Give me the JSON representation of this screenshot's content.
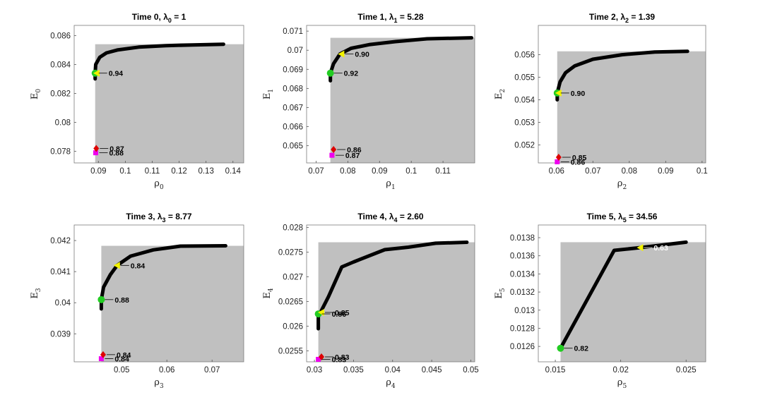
{
  "chart_data": [
    {
      "type": "line",
      "title": "Time 0,  λ",
      "title_sub": "0",
      "title_value": " = 1",
      "xlabel": "ρ",
      "xlabel_sub": "0",
      "ylabel": "E",
      "ylabel_sub": "0",
      "xlim": [
        0.081,
        0.144
      ],
      "ylim": [
        0.0772,
        0.0867
      ],
      "xticks": [
        0.09,
        0.1,
        0.11,
        0.12,
        0.13,
        0.14
      ],
      "xtick_labels": [
        "0.09",
        "0.1",
        "0.11",
        "0.12",
        "0.13",
        "0.14"
      ],
      "yticks": [
        0.078,
        0.08,
        0.082,
        0.084,
        0.086
      ],
      "ytick_labels": [
        "0.078",
        "0.08",
        "0.082",
        "0.084",
        "0.086"
      ],
      "frontier": [
        [
          0.0888,
          0.083
        ],
        [
          0.0888,
          0.0834
        ],
        [
          0.089,
          0.084
        ],
        [
          0.0905,
          0.0845
        ],
        [
          0.093,
          0.0848
        ],
        [
          0.097,
          0.085
        ],
        [
          0.105,
          0.0852
        ],
        [
          0.115,
          0.0853
        ],
        [
          0.125,
          0.08535
        ],
        [
          0.1365,
          0.0854
        ]
      ],
      "region_top": 0.0854,
      "markers": [
        {
          "x": 0.0888,
          "y": 0.0834,
          "color": "#22cc22",
          "shape": "circle",
          "label": "0.94"
        },
        {
          "x": 0.0894,
          "y": 0.0834,
          "color": "#f2f200",
          "shape": "triangle",
          "label": ""
        },
        {
          "x": 0.0892,
          "y": 0.0782,
          "color": "#dd0000",
          "shape": "diamond",
          "label": "0.87"
        },
        {
          "x": 0.089,
          "y": 0.0779,
          "color": "#ee00ee",
          "shape": "square",
          "label": "0.88"
        }
      ]
    },
    {
      "type": "line",
      "title": "Time 1,  λ",
      "title_sub": "1",
      "title_value": " = 5.28",
      "xlabel": "ρ",
      "xlabel_sub": "1",
      "ylabel": "E",
      "ylabel_sub": "1",
      "xlim": [
        0.067,
        0.12
      ],
      "ylim": [
        0.0641,
        0.0713
      ],
      "xticks": [
        0.07,
        0.08,
        0.09,
        0.1,
        0.11
      ],
      "xtick_labels": [
        "0.07",
        "0.08",
        "0.09",
        "0.1",
        "0.11"
      ],
      "yticks": [
        0.065,
        0.066,
        0.067,
        0.068,
        0.069,
        0.07,
        0.071
      ],
      "ytick_labels": [
        "0.065",
        "0.066",
        "0.067",
        "0.068",
        "0.069",
        "0.07",
        "0.071"
      ],
      "frontier": [
        [
          0.0745,
          0.0684
        ],
        [
          0.0745,
          0.0688
        ],
        [
          0.0755,
          0.0693
        ],
        [
          0.0775,
          0.0698
        ],
        [
          0.081,
          0.0701
        ],
        [
          0.087,
          0.0703
        ],
        [
          0.095,
          0.07045
        ],
        [
          0.105,
          0.0706
        ],
        [
          0.119,
          0.07065
        ]
      ],
      "region_top": 0.07065,
      "markers": [
        {
          "x": 0.0745,
          "y": 0.0688,
          "color": "#22cc22",
          "shape": "circle",
          "label": "0.92"
        },
        {
          "x": 0.078,
          "y": 0.0698,
          "color": "#f2f200",
          "shape": "triangle",
          "label": "0.90"
        },
        {
          "x": 0.0755,
          "y": 0.0648,
          "color": "#dd0000",
          "shape": "diamond",
          "label": "0.86"
        },
        {
          "x": 0.075,
          "y": 0.0645,
          "color": "#ee00ee",
          "shape": "square",
          "label": "0.87"
        }
      ]
    },
    {
      "type": "line",
      "title": "Time 2,  λ",
      "title_sub": "2",
      "title_value": " = 1.39",
      "xlabel": "ρ",
      "xlabel_sub": "2",
      "ylabel": "E",
      "ylabel_sub": "2",
      "xlim": [
        0.055,
        0.101
      ],
      "ylim": [
        0.0512,
        0.0573
      ],
      "xticks": [
        0.06,
        0.07,
        0.08,
        0.09,
        0.1
      ],
      "xtick_labels": [
        "0.06",
        "0.07",
        "0.08",
        "0.09",
        "0.1"
      ],
      "yticks": [
        0.052,
        0.053,
        0.054,
        0.055,
        0.056
      ],
      "ytick_labels": [
        "0.052",
        "0.053",
        "0.054",
        "0.055",
        "0.056"
      ],
      "frontier": [
        [
          0.0602,
          0.054
        ],
        [
          0.0602,
          0.0543
        ],
        [
          0.061,
          0.0548
        ],
        [
          0.0625,
          0.0552
        ],
        [
          0.065,
          0.0555
        ],
        [
          0.07,
          0.0558
        ],
        [
          0.078,
          0.056
        ],
        [
          0.087,
          0.05612
        ],
        [
          0.096,
          0.05615
        ]
      ],
      "region_top": 0.05615,
      "markers": [
        {
          "x": 0.0602,
          "y": 0.0543,
          "color": "#22cc22",
          "shape": "circle",
          "label": "0.90"
        },
        {
          "x": 0.0606,
          "y": 0.0543,
          "color": "#f2f200",
          "shape": "triangle",
          "label": ""
        },
        {
          "x": 0.0606,
          "y": 0.05145,
          "color": "#dd0000",
          "shape": "diamond",
          "label": "0.85"
        },
        {
          "x": 0.0602,
          "y": 0.05125,
          "color": "#ee00ee",
          "shape": "square",
          "label": "0.86"
        }
      ]
    },
    {
      "type": "line",
      "title": "Time 3,  λ",
      "title_sub": "3",
      "title_value": " = 8.77",
      "xlabel": "ρ",
      "xlabel_sub": "3",
      "ylabel": "E",
      "ylabel_sub": "3",
      "xlim": [
        0.0395,
        0.077
      ],
      "ylim": [
        0.0381,
        0.0425
      ],
      "xticks": [
        0.05,
        0.06,
        0.07
      ],
      "xtick_labels": [
        "0.05",
        "0.06",
        "0.07"
      ],
      "yticks": [
        0.039,
        0.04,
        0.041,
        0.042
      ],
      "ytick_labels": [
        "0.039",
        "0.04",
        "0.041",
        "0.042"
      ],
      "frontier": [
        [
          0.0455,
          0.0398
        ],
        [
          0.0455,
          0.0401
        ],
        [
          0.046,
          0.0405
        ],
        [
          0.0475,
          0.0409
        ],
        [
          0.049,
          0.0412
        ],
        [
          0.052,
          0.0415
        ],
        [
          0.057,
          0.0417
        ],
        [
          0.063,
          0.04182
        ],
        [
          0.073,
          0.04183
        ]
      ],
      "region_top": 0.04183,
      "markers": [
        {
          "x": 0.0455,
          "y": 0.0401,
          "color": "#22cc22",
          "shape": "circle",
          "label": "0.88"
        },
        {
          "x": 0.049,
          "y": 0.0412,
          "color": "#f2f200",
          "shape": "triangle",
          "label": "0.84"
        },
        {
          "x": 0.0459,
          "y": 0.03833,
          "color": "#dd0000",
          "shape": "diamond",
          "label": "0.84"
        },
        {
          "x": 0.0455,
          "y": 0.0382,
          "color": "#ee00ee",
          "shape": "square",
          "label": "0.84"
        }
      ]
    },
    {
      "type": "line",
      "title": "Time 4,  λ",
      "title_sub": "4",
      "title_value": " = 2.60",
      "xlabel": "ρ",
      "xlabel_sub": "4",
      "ylabel": "E",
      "ylabel_sub": "4",
      "xlim": [
        0.029,
        0.0505
      ],
      "ylim": [
        0.02528,
        0.02805
      ],
      "xticks": [
        0.03,
        0.035,
        0.04,
        0.045,
        0.05
      ],
      "xtick_labels": [
        "0.03",
        "0.035",
        "0.04",
        "0.045",
        "0.05"
      ],
      "yticks": [
        0.0255,
        0.026,
        0.0265,
        0.027,
        0.0275,
        0.028
      ],
      "ytick_labels": [
        "0.0255",
        "0.026",
        "0.0265",
        "0.027",
        "0.0275",
        "0.028"
      ],
      "frontier": [
        [
          0.0305,
          0.02595
        ],
        [
          0.0305,
          0.0262
        ],
        [
          0.031,
          0.02635
        ],
        [
          0.0318,
          0.0266
        ],
        [
          0.0335,
          0.0272
        ],
        [
          0.035,
          0.0273
        ],
        [
          0.039,
          0.02755
        ],
        [
          0.042,
          0.0276
        ],
        [
          0.0455,
          0.02768
        ],
        [
          0.0495,
          0.0277
        ]
      ],
      "region_top": 0.0277,
      "markers": [
        {
          "x": 0.0305,
          "y": 0.02625,
          "color": "#22cc22",
          "shape": "circle",
          "label": "0.86"
        },
        {
          "x": 0.0309,
          "y": 0.02628,
          "color": "#f2f200",
          "shape": "triangle",
          "label": "0.85"
        },
        {
          "x": 0.0309,
          "y": 0.02538,
          "color": "#dd0000",
          "shape": "diamond",
          "label": "0.83"
        },
        {
          "x": 0.0305,
          "y": 0.02533,
          "color": "#ee00ee",
          "shape": "square",
          "label": "0.83"
        }
      ]
    },
    {
      "type": "line",
      "title": "Time 5,  λ",
      "title_sub": "5",
      "title_value": " = 34.56",
      "xlabel": "ρ",
      "xlabel_sub": "5",
      "ylabel": "E",
      "ylabel_sub": "5",
      "xlim": [
        0.0137,
        0.0265
      ],
      "ylim": [
        0.01243,
        0.01394
      ],
      "xticks": [
        0.015,
        0.02,
        0.025
      ],
      "xtick_labels": [
        "0.015",
        "0.02",
        "0.025"
      ],
      "yticks": [
        0.0126,
        0.0128,
        0.013,
        0.0132,
        0.0134,
        0.0136,
        0.0138
      ],
      "ytick_labels": [
        "0.0126",
        "0.0128",
        "0.013",
        "0.0132",
        "0.0134",
        "0.0136",
        "0.0138"
      ],
      "frontier": [
        [
          0.0154,
          0.01258
        ],
        [
          0.0195,
          0.01366
        ],
        [
          0.0215,
          0.01369
        ],
        [
          0.025,
          0.01375
        ]
      ],
      "region_top": 0.01375,
      "markers": [
        {
          "x": 0.0154,
          "y": 0.01258,
          "color": "#22cc22",
          "shape": "circle",
          "label": "0.82"
        },
        {
          "x": 0.0154,
          "y": 0.01258,
          "color": "#dd0000",
          "shape": "diamond",
          "label": ""
        },
        {
          "x": 0.0154,
          "y": 0.01258,
          "color": "#ee00ee",
          "shape": "square",
          "label": ""
        },
        {
          "x": 0.0215,
          "y": 0.01369,
          "color": "#f2f200",
          "shape": "triangle",
          "label": "0.63",
          "label_color": "#ffffff"
        }
      ]
    }
  ]
}
